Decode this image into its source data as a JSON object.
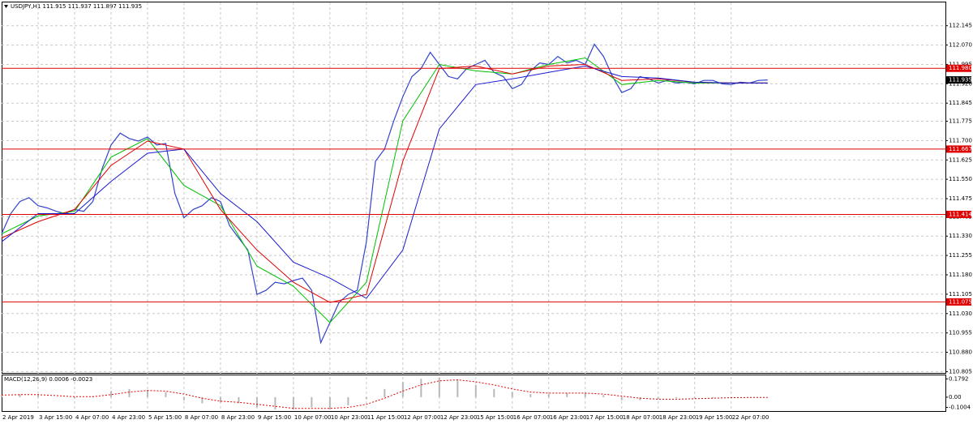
{
  "chart_data": [
    {
      "type": "line",
      "symbol": "USDJPY,H1",
      "ohlc": [
        111.915,
        111.937,
        111.897,
        111.935
      ],
      "xlim": [
        0,
        414
      ],
      "xticks": [
        {
          "value": 0,
          "label": "2 Apr 2019"
        },
        {
          "value": 16,
          "label": "3 Apr 15:00"
        },
        {
          "value": 32,
          "label": "4 Apr 07:00"
        },
        {
          "value": 48,
          "label": "4 Apr 23:00"
        },
        {
          "value": 64,
          "label": "5 Apr 15:00"
        },
        {
          "value": 80,
          "label": "8 Apr 07:00"
        },
        {
          "value": 96,
          "label": "8 Apr 23:00"
        },
        {
          "value": 112,
          "label": "9 Apr 15:00"
        },
        {
          "value": 128,
          "label": "10 Apr 07:00"
        },
        {
          "value": 144,
          "label": "10 Apr 23:00"
        },
        {
          "value": 160,
          "label": "11 Apr 15:00"
        },
        {
          "value": 176,
          "label": "12 Apr 07:00"
        },
        {
          "value": 192,
          "label": "12 Apr 23:00"
        },
        {
          "value": 208,
          "label": "15 Apr 15:00"
        },
        {
          "value": 224,
          "label": "16 Apr 07:00"
        },
        {
          "value": 240,
          "label": "16 Apr 23:00"
        },
        {
          "value": 256,
          "label": "17 Apr 15:00"
        },
        {
          "value": 272,
          "label": "18 Apr 07:00"
        },
        {
          "value": 288,
          "label": "18 Apr 23:00"
        },
        {
          "value": 304,
          "label": "19 Apr 15:00"
        },
        {
          "value": 320,
          "label": "22 Apr 07:00"
        }
      ],
      "ylim": [
        110.8,
        112.232
      ],
      "yticks": [
        112.145,
        {
          "value": 112.07,
          "label": "112.070"
        },
        111.995,
        {
          "value": 111.92,
          "label": "111.920"
        },
        111.845,
        111.775,
        {
          "value": 111.7,
          "label": "111.700"
        },
        111.625,
        {
          "value": 111.55,
          "label": "111.550"
        },
        111.475,
        111.405,
        {
          "value": 111.33,
          "label": "111.330"
        },
        111.255,
        {
          "value": 111.18,
          "label": "111.180"
        },
        111.105,
        {
          "value": 111.03,
          "label": "111.030"
        },
        110.955,
        {
          "value": 110.88,
          "label": "110.880"
        },
        110.805
      ],
      "grid": true,
      "levels": [
        {
          "value": 111.98,
          "label": "111.980"
        },
        111.667,
        111.414,
        111.075
      ],
      "level_color": "#e00000",
      "last_price": 111.935,
      "series": [
        {
          "color": "#3344cc",
          "x": [
            0,
            4,
            8,
            12,
            16,
            20,
            24,
            28,
            32,
            36,
            40,
            44,
            48,
            52,
            56,
            60,
            64,
            68,
            72,
            76,
            80,
            84,
            88,
            92,
            96,
            100,
            104,
            108,
            112,
            116,
            120,
            124,
            128,
            132,
            136,
            140,
            144,
            148,
            152,
            156,
            160,
            164,
            168,
            172,
            176,
            180,
            184,
            188,
            192,
            196,
            200,
            204,
            208,
            212,
            216,
            220,
            224,
            228,
            232,
            236,
            240,
            244,
            248,
            252,
            256,
            260,
            264,
            268,
            272,
            276,
            280,
            284,
            288,
            292,
            296,
            300,
            304,
            308,
            312,
            316,
            320,
            324,
            328,
            332,
            336
          ],
          "values": [
            111.339,
            111.417,
            111.464,
            111.479,
            111.448,
            111.439,
            111.426,
            111.417,
            111.433,
            111.426,
            111.464,
            111.589,
            111.683,
            111.729,
            111.708,
            111.698,
            111.714,
            111.683,
            111.689,
            111.495,
            111.401,
            111.433,
            111.448,
            111.479,
            111.464,
            111.37,
            111.323,
            111.276,
            111.104,
            111.12,
            111.151,
            111.145,
            111.158,
            111.167,
            111.12,
            110.917,
            110.995,
            111.073,
            111.104,
            111.12,
            111.308,
            111.62,
            111.667,
            111.776,
            111.87,
            111.948,
            111.979,
            112.042,
            111.995,
            111.948,
            111.939,
            111.979,
            111.995,
            112.011,
            111.964,
            111.948,
            111.901,
            111.917,
            111.97,
            112.001,
            111.995,
            112.026,
            112.001,
            112.011,
            111.995,
            112.073,
            112.026,
            111.948,
            111.886,
            111.901,
            111.948,
            111.939,
            111.923,
            111.933,
            111.923,
            111.926,
            111.92,
            111.933,
            111.933,
            111.92,
            111.917,
            111.926,
            111.923,
            111.933,
            111.935
          ]
        },
        {
          "color": "#00c000",
          "x": [
            0,
            16,
            32,
            48,
            64,
            80,
            96,
            112,
            128,
            144,
            160,
            176,
            192,
            208,
            224,
            240,
            256,
            272,
            288,
            304,
            320,
            336
          ],
          "values": [
            111.339,
            111.408,
            111.426,
            111.636,
            111.708,
            111.526,
            111.448,
            111.214,
            111.136,
            110.995,
            111.151,
            111.776,
            111.995,
            111.97,
            111.958,
            111.995,
            112.02,
            111.917,
            111.933,
            111.923,
            111.923,
            111.923
          ]
        },
        {
          "color": "#e00000",
          "x": [
            0,
            16,
            32,
            48,
            64,
            80,
            96,
            112,
            128,
            144,
            160,
            176,
            192,
            208,
            224,
            240,
            256,
            272,
            288,
            304,
            320,
            336
          ],
          "values": [
            111.323,
            111.386,
            111.433,
            111.604,
            111.698,
            111.667,
            111.433,
            111.276,
            111.151,
            111.073,
            111.104,
            111.62,
            111.979,
            111.989,
            111.958,
            111.989,
            111.995,
            111.933,
            111.939,
            111.926,
            111.923,
            111.923
          ]
        },
        {
          "color": "#1a1ad0",
          "x": [
            0,
            16,
            32,
            48,
            64,
            80,
            96,
            112,
            128,
            144,
            160,
            176,
            192,
            208,
            224,
            240,
            256,
            272,
            288,
            304,
            320,
            336
          ],
          "values": [
            111.308,
            111.417,
            111.417,
            111.542,
            111.651,
            111.667,
            111.495,
            111.386,
            111.229,
            111.167,
            111.089,
            111.276,
            111.745,
            111.917,
            111.939,
            111.964,
            111.989,
            111.948,
            111.942,
            111.926,
            111.923,
            111.923
          ]
        }
      ]
    },
    {
      "type": "macd",
      "title": "MACD(12,26,9)",
      "title_values": [
        0.0006,
        -0.0023
      ],
      "xlim": [
        0,
        414
      ],
      "ylim": [
        -0.12,
        0.19
      ],
      "yticks": [
        0.1792,
        {
          "value": 0,
          "label": "0.00"
        },
        -0.1004
      ],
      "series": [
        {
          "color": "#b8b8b8",
          "x": [
            0,
            8,
            16,
            24,
            32,
            40,
            48,
            56,
            64,
            72,
            80,
            88,
            96,
            104,
            112,
            120,
            128,
            136,
            144,
            152,
            160,
            168,
            176,
            184,
            192,
            200,
            208,
            216,
            224,
            232,
            240,
            248,
            256,
            264,
            272,
            280,
            288,
            296,
            304,
            312,
            320,
            328,
            336
          ],
          "values": [
            0.02,
            0.03,
            0.02,
            0.0,
            -0.01,
            0.01,
            0.06,
            0.08,
            0.07,
            0.05,
            -0.03,
            -0.06,
            -0.05,
            -0.06,
            -0.1,
            -0.12,
            -0.12,
            -0.1,
            -0.12,
            -0.08,
            -0.02,
            0.08,
            0.15,
            0.18,
            0.19,
            0.17,
            0.12,
            0.08,
            0.05,
            0.03,
            0.03,
            0.04,
            0.04,
            0.02,
            -0.03,
            -0.03,
            -0.02,
            -0.01,
            -0.01,
            -0.01,
            0.0,
            0.0,
            0.0006
          ]
        },
        {
          "color": "#e00000",
          "x": [
            0,
            8,
            16,
            24,
            32,
            40,
            48,
            56,
            64,
            72,
            80,
            88,
            96,
            104,
            112,
            120,
            128,
            136,
            144,
            152,
            160,
            168,
            176,
            184,
            192,
            200,
            208,
            216,
            224,
            232,
            240,
            248,
            256,
            264,
            272,
            280,
            288,
            296,
            304,
            312,
            320,
            328,
            336
          ],
          "values": [
            0.02,
            0.025,
            0.025,
            0.015,
            0.005,
            0.005,
            0.025,
            0.05,
            0.065,
            0.06,
            0.03,
            -0.01,
            -0.04,
            -0.05,
            -0.07,
            -0.09,
            -0.11,
            -0.11,
            -0.11,
            -0.1,
            -0.07,
            -0.01,
            0.06,
            0.12,
            0.16,
            0.17,
            0.15,
            0.12,
            0.08,
            0.05,
            0.04,
            0.04,
            0.04,
            0.03,
            0.01,
            -0.01,
            -0.02,
            -0.02,
            -0.015,
            -0.01,
            -0.005,
            -0.003,
            -0.0023
          ]
        }
      ]
    }
  ]
}
